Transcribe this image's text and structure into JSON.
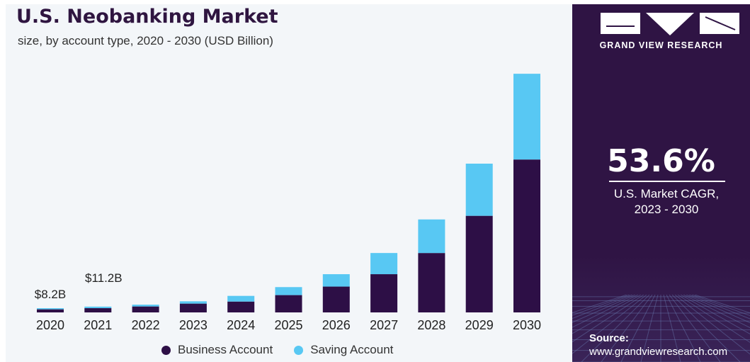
{
  "title": "U.S. Neobanking Market",
  "subtitle": "size, by account type, 2020 - 2030 (USD Billion)",
  "brand": "GRAND VIEW RESEARCH",
  "cagr": {
    "value": "53.6%",
    "label_line1": "U.S. Market CAGR,",
    "label_line2": "2023 - 2030"
  },
  "source": {
    "label": "Source:",
    "url": "www.grandviewresearch.com"
  },
  "colors": {
    "business": "#2d0f46",
    "saving": "#58c8f3",
    "panel": "#2f1444"
  },
  "chart_data": {
    "type": "bar",
    "stacked": true,
    "categories": [
      "2020",
      "2021",
      "2022",
      "2023",
      "2024",
      "2025",
      "2026",
      "2027",
      "2028",
      "2029",
      "2030"
    ],
    "series": [
      {
        "name": "Business Account",
        "values": [
          6.0,
          8.2,
          11.5,
          17.0,
          21.0,
          33.5,
          50.0,
          74.0,
          115.0,
          187.0,
          296.0
        ]
      },
      {
        "name": "Saving Account",
        "values": [
          2.2,
          3.0,
          3.5,
          4.5,
          11.0,
          15.5,
          24.0,
          41.0,
          65.0,
          101.0,
          166.0
        ]
      }
    ],
    "data_labels": [
      {
        "category": "2020",
        "text": "$8.2B"
      },
      {
        "category": "2021",
        "text": "$11.2B"
      }
    ],
    "ylim": [
      0,
      480
    ],
    "legend": "bottom",
    "grid": false
  }
}
